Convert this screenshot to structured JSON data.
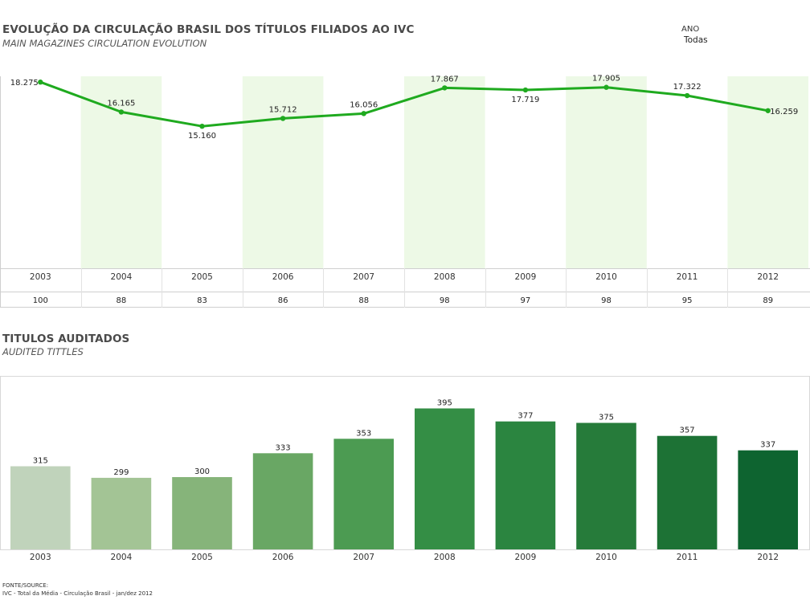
{
  "header": {
    "title": "EVOLUÇÃO DA CIRCULAÇÃO BRASIL DOS TÍTULOS FILIADOS AO IVC",
    "subtitle": "MAIN MAGAZINES CIRCULATION EVOLUTION"
  },
  "filter": {
    "label": "ANO",
    "value": "Todas"
  },
  "section2": {
    "title": "TITULOS AUDITADOS",
    "subtitle": "AUDITED TITTLES"
  },
  "footer": {
    "label": "FONTE/SOURCE:",
    "text": "IVC - Total da Média - Circulação Brasil - jan/dez 2012"
  },
  "colors": {
    "line": "#1faa1f",
    "band": "#edf9e6",
    "bars": [
      "#c0d3bb",
      "#a3c495",
      "#86b47a",
      "#69a764",
      "#4c9b52",
      "#348e45",
      "#2b8540",
      "#267b3a",
      "#1d7235",
      "#0e6430"
    ]
  },
  "chart_data": [
    {
      "type": "line",
      "title": "EVOLUÇÃO DA CIRCULAÇÃO BRASIL DOS TÍTULOS FILIADOS AO IVC",
      "subtitle": "MAIN MAGAZINES CIRCULATION EVOLUTION",
      "categories": [
        "2003",
        "2004",
        "2005",
        "2006",
        "2007",
        "2008",
        "2009",
        "2010",
        "2011",
        "2012"
      ],
      "values": [
        18275,
        16165,
        15160,
        15712,
        16056,
        17867,
        17719,
        17905,
        17322,
        16259
      ],
      "value_labels": [
        "18.275",
        "16.165",
        "15.160",
        "15.712",
        "16.056",
        "17.867",
        "17.719",
        "17.905",
        "17.322",
        "16.259"
      ],
      "index_row": [
        "100",
        "88",
        "83",
        "86",
        "88",
        "98",
        "97",
        "98",
        "95",
        "89"
      ],
      "grid": false,
      "alternating_bands": true
    },
    {
      "type": "bar",
      "title": "TITULOS AUDITADOS",
      "subtitle": "AUDITED TITTLES",
      "categories": [
        "2003",
        "2004",
        "2005",
        "2006",
        "2007",
        "2008",
        "2009",
        "2010",
        "2011",
        "2012"
      ],
      "values": [
        315,
        299,
        300,
        333,
        353,
        395,
        377,
        375,
        357,
        337
      ],
      "ylim": [
        0,
        420
      ],
      "grid": false
    }
  ]
}
